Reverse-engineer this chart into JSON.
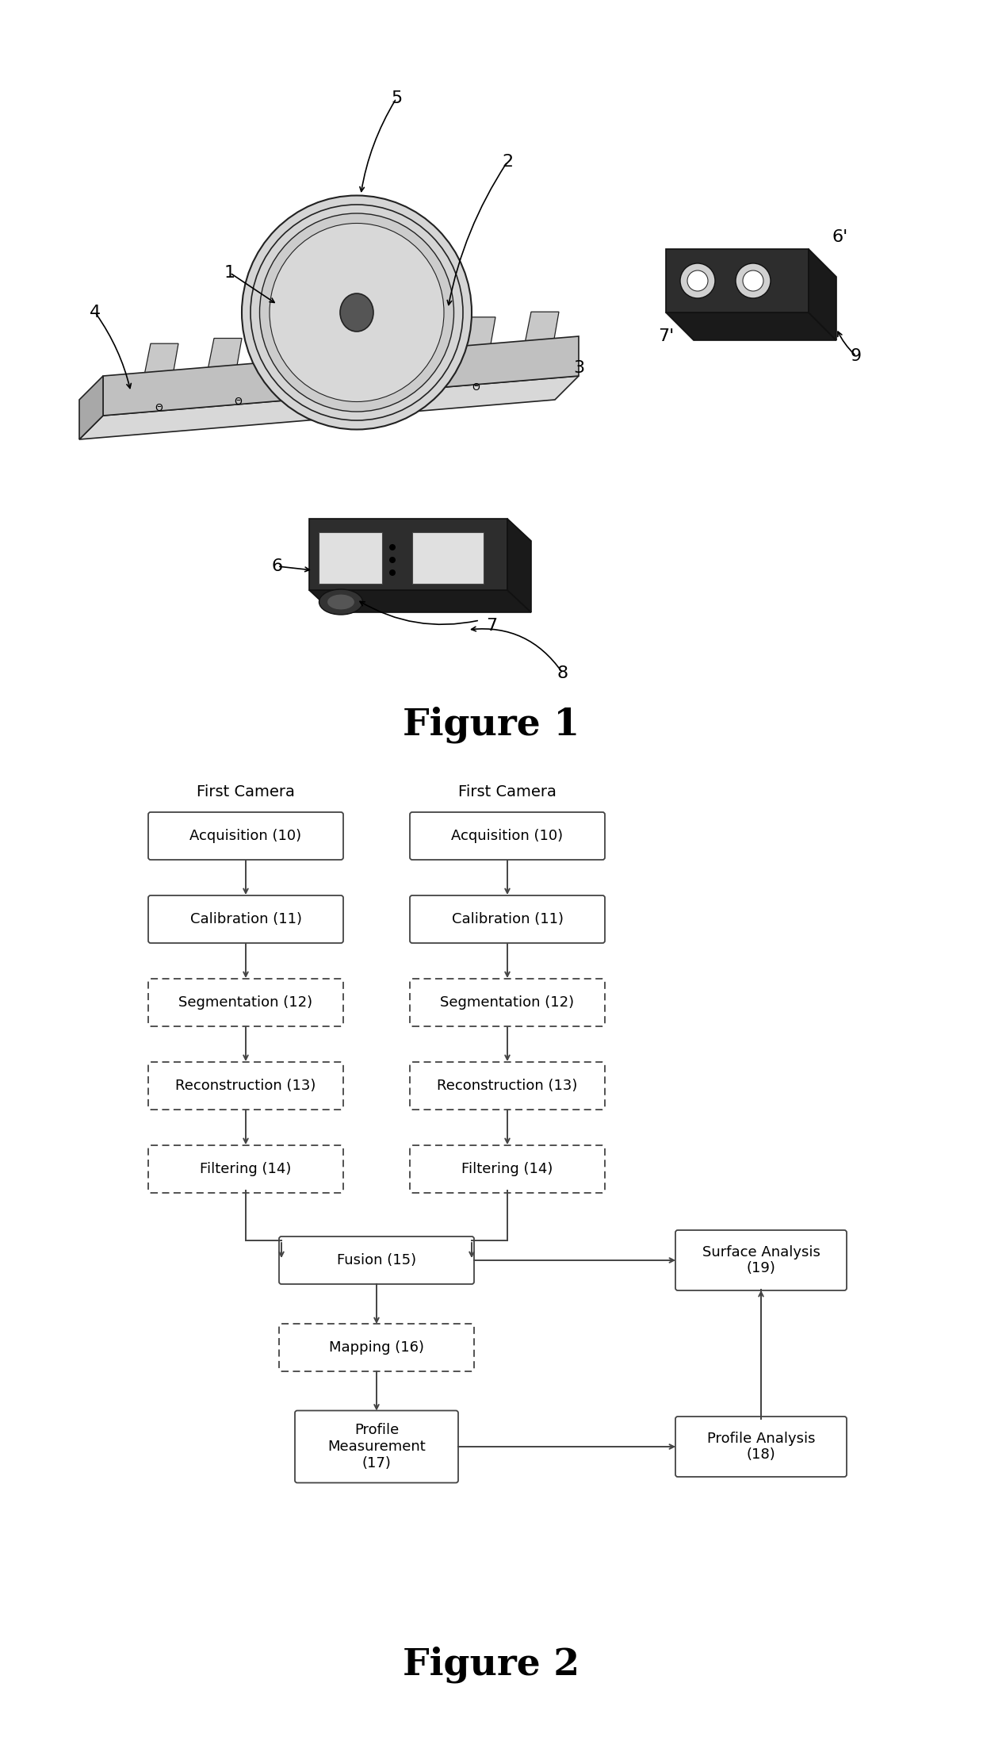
{
  "fig_width": 12.4,
  "fig_height": 22.14,
  "background_color": "#ffffff",
  "figure1_label": "Figure 1",
  "figure2_label": "Figure 2",
  "flow_boxes_left": [
    "Acquisition (10)",
    "Calibration (11)",
    "Segmentation (12)",
    "Reconstruction (13)",
    "Filtering (14)"
  ],
  "flow_boxes_right": [
    "Acquisition (10)",
    "Calibration (11)",
    "Segmentation (12)",
    "Reconstruction (13)",
    "Filtering (14)"
  ],
  "label_first_camera_left": "First Camera",
  "label_first_camera_right": "First Camera",
  "box_color": "#ffffff",
  "box_edge_color": "#444444",
  "text_color": "#000000",
  "arrow_color": "#444444"
}
